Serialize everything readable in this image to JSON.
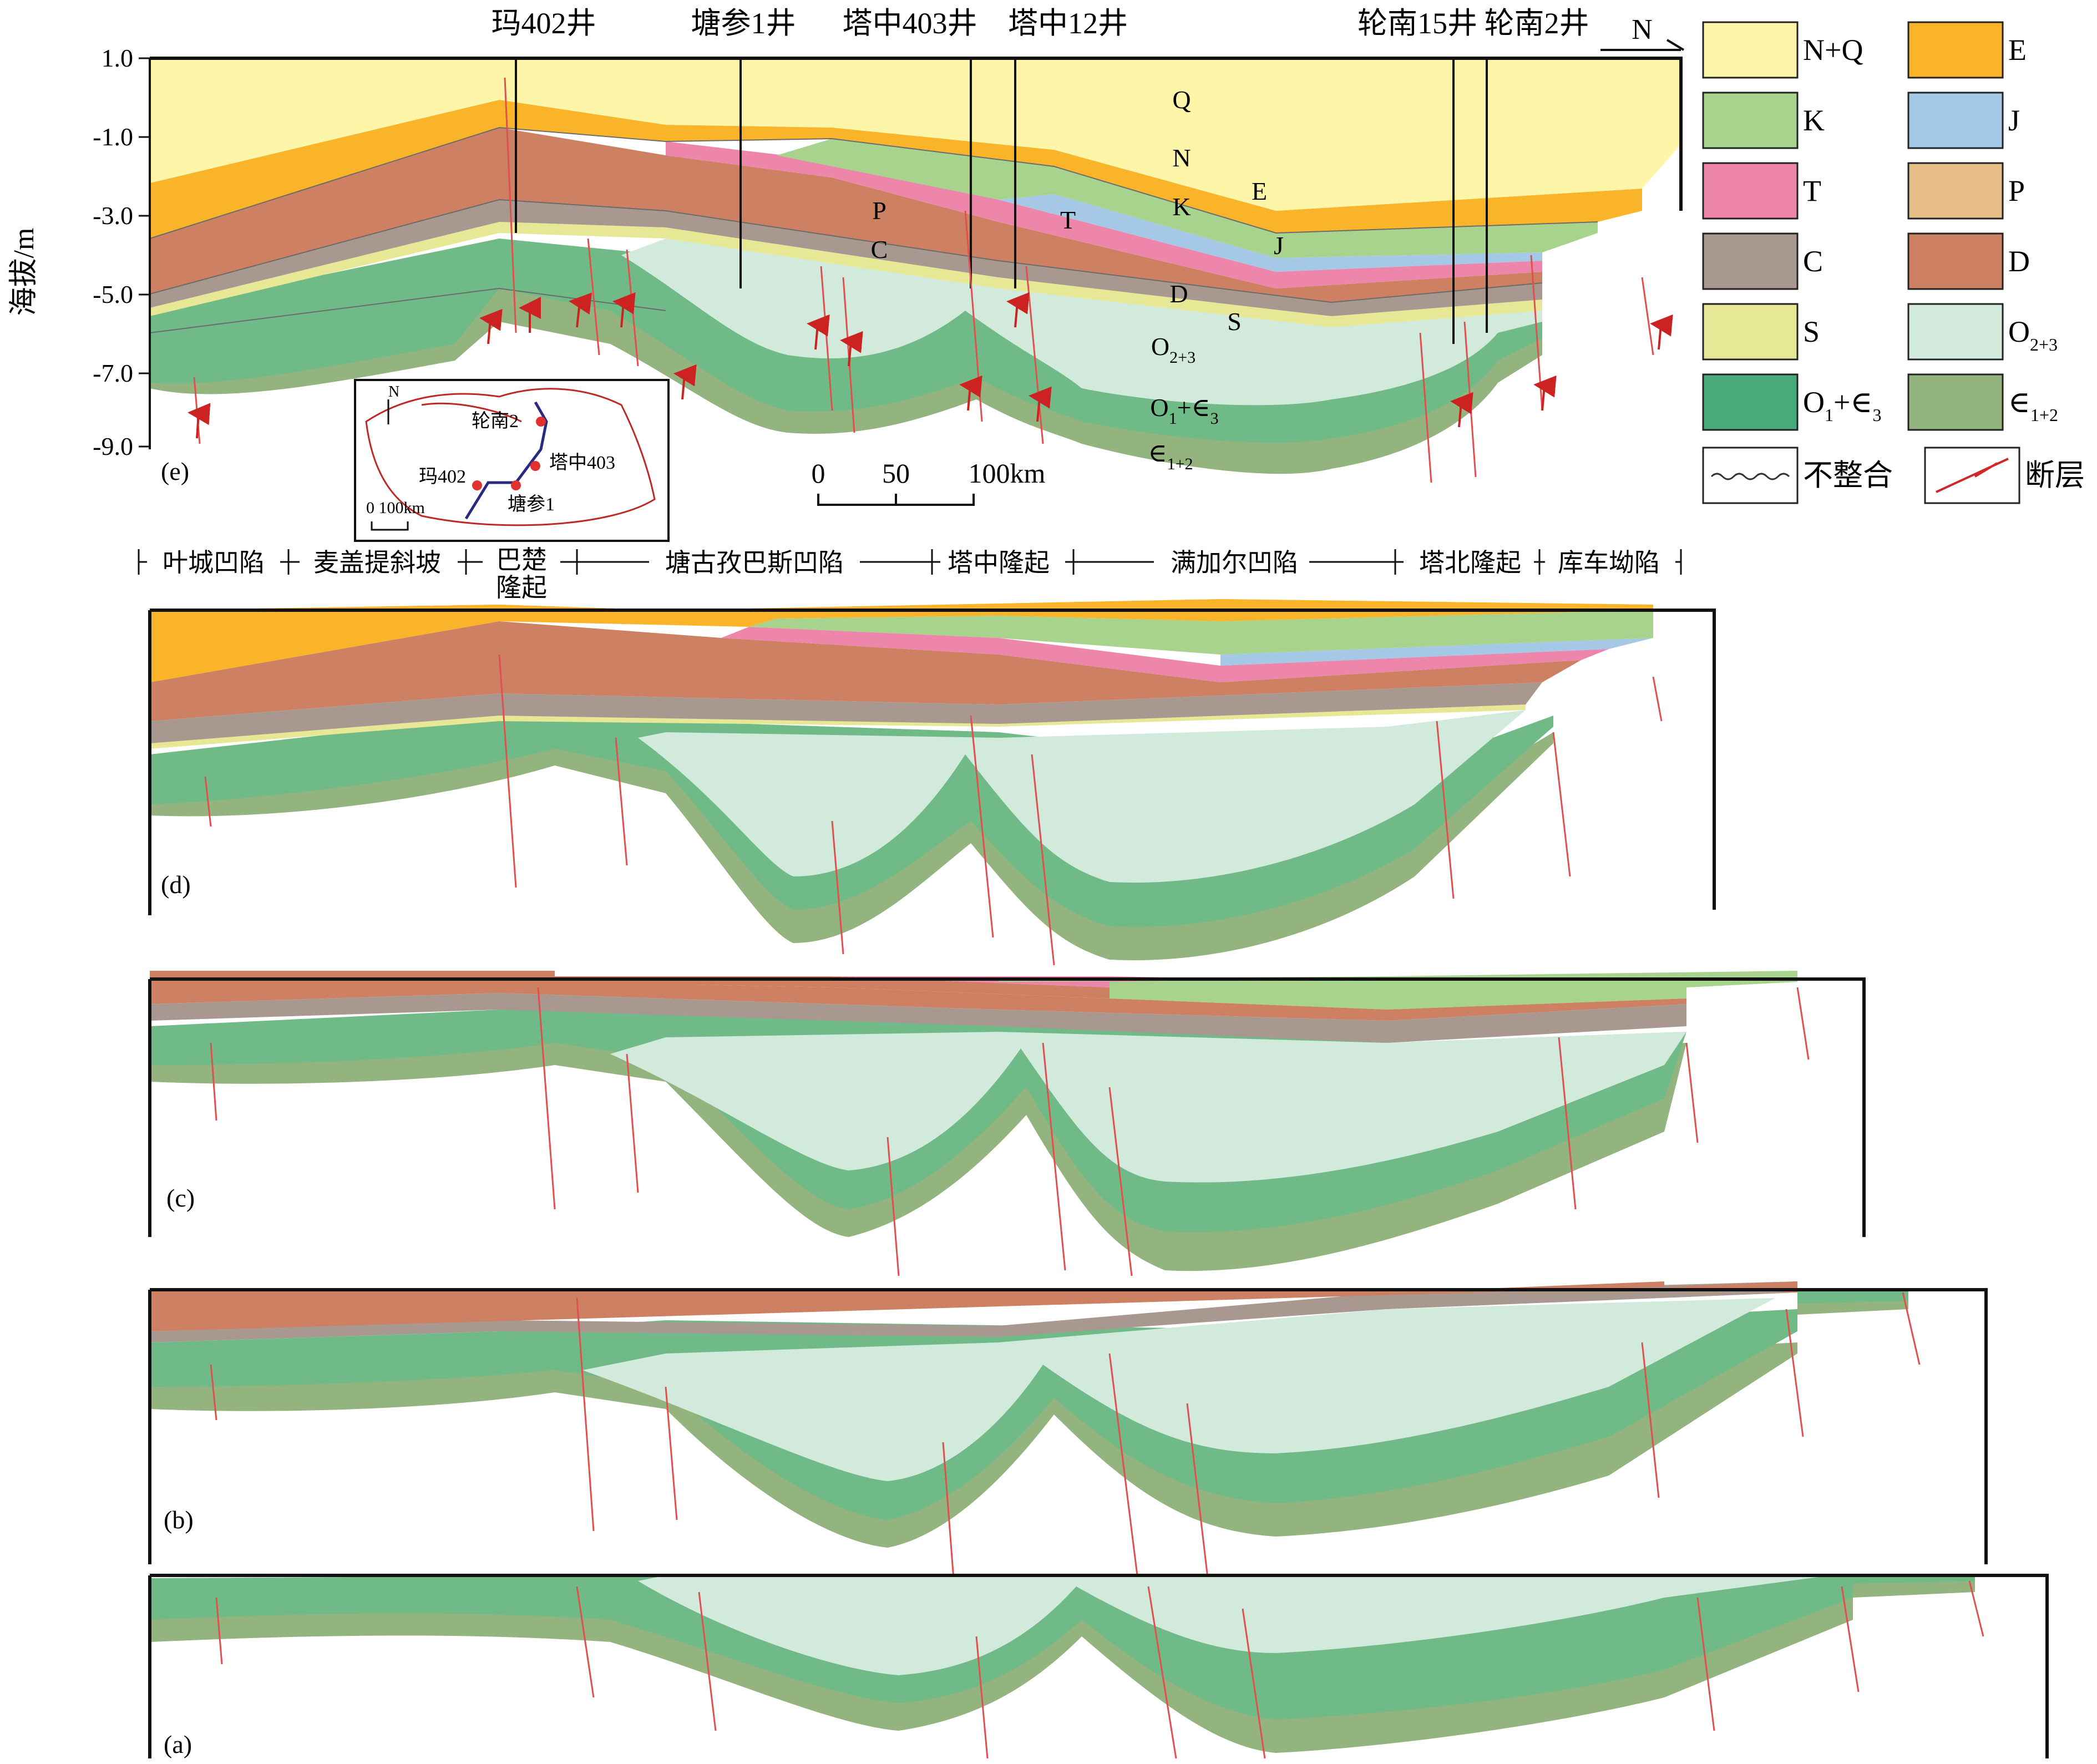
{
  "y_axis": {
    "label": "海拔/m",
    "ticks": [
      "1.0",
      "-1.0",
      "-3.0",
      "-5.0",
      "-7.0",
      "-9.0"
    ]
  },
  "wells": [
    "玛402井",
    "塘参1井",
    "塔中403井",
    "塔中12井",
    "轮南15井",
    "轮南2井"
  ],
  "north_arrow": "N",
  "panel_labels": [
    "(e)",
    "(d)",
    "(c)",
    "(b)",
    "(a)"
  ],
  "formation_labels": {
    "Q": "Q",
    "N": "N",
    "E": "E",
    "K": "K",
    "J": "J",
    "T": "T",
    "P": "P",
    "C": "C",
    "D": "D",
    "S": "S",
    "O23": "O",
    "O23_sub": "2+3",
    "O1": "O",
    "O1_sub": "1",
    "O1_mid": "+∈",
    "O1_sub2": "3",
    "E12": "∈",
    "E12_sub": "1+2"
  },
  "scale_bar": {
    "labels": [
      "0",
      "50",
      "100km"
    ]
  },
  "inset_map": {
    "compass": "N",
    "scale": "0 100km",
    "wells": [
      "轮南2",
      "塔中403",
      "玛402",
      "塘参1"
    ]
  },
  "structural_units": [
    "叶城凹陷",
    "麦盖提斜坡",
    "巴楚",
    "隆起",
    "塘古孜巴斯凹陷",
    "塔中隆起",
    "满加尔凹陷",
    "塔北隆起",
    "库车坳陷"
  ],
  "legend": [
    {
      "label": "N+Q",
      "sub": "",
      "color": "#fdf5a8"
    },
    {
      "label": "E",
      "sub": "",
      "color": "#f9b42a"
    },
    {
      "label": "K",
      "sub": "",
      "color": "#a8d38c"
    },
    {
      "label": "J",
      "sub": "",
      "color": "#a5c8e6"
    },
    {
      "label": "T",
      "sub": "",
      "color": "#ee86ac"
    },
    {
      "label": "P",
      "sub": "",
      "color": "#e6bd86"
    },
    {
      "label": "C",
      "sub": "",
      "color": "#a89890"
    },
    {
      "label": "D",
      "sub": "",
      "color": "#cd8062"
    },
    {
      "label": "S",
      "sub": "",
      "color": "#e6e896"
    },
    {
      "label": "O",
      "sub": "2+3",
      "color": "#d2eadc"
    },
    {
      "label": "O",
      "sub": "1",
      "mid": "+∈",
      "sub2": "3",
      "color": "#4aaa7a"
    },
    {
      "label": "∈",
      "sub": "1+2",
      "color": "#93b47e"
    }
  ],
  "legend_symbols": {
    "unconformity": "不整合",
    "fault": "断层"
  }
}
